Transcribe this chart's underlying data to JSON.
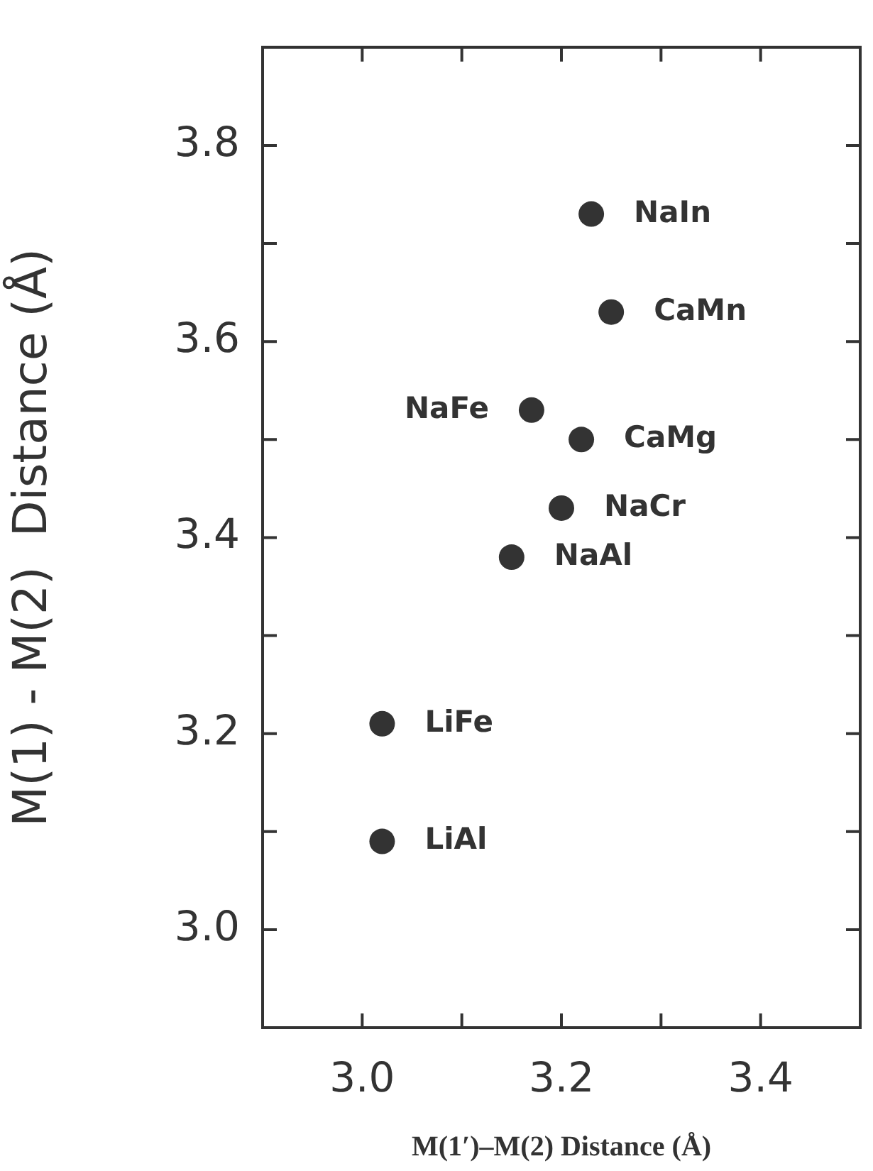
{
  "chart_data": {
    "type": "scatter",
    "xlabel": "M(1′)–M(2) Distance (Å)",
    "ylabel": "M(1) - M(2)  Distance (Å)",
    "x": [
      3.23,
      3.25,
      3.17,
      3.22,
      3.2,
      3.15,
      3.02,
      3.02
    ],
    "values": [
      3.73,
      3.63,
      3.53,
      3.5,
      3.43,
      3.38,
      3.21,
      3.09
    ],
    "color": "#333333",
    "marker": "circle",
    "grid": false,
    "xlim": [
      2.9,
      3.5
    ],
    "ylim": [
      2.9,
      3.9
    ],
    "xticks": [
      {
        "value": 3.0,
        "label": "3.0"
      },
      {
        "value": 3.1,
        "label": null
      },
      {
        "value": 3.2,
        "label": "3.2"
      },
      {
        "value": 3.3,
        "label": null
      },
      {
        "value": 3.4,
        "label": "3.4"
      }
    ],
    "yticks": [
      {
        "value": 3.0,
        "label": "3.0"
      },
      {
        "value": 3.1,
        "label": null
      },
      {
        "value": 3.2,
        "label": "3.2"
      },
      {
        "value": 3.3,
        "label": null
      },
      {
        "value": 3.4,
        "label": "3.4"
      },
      {
        "value": 3.5,
        "label": null
      },
      {
        "value": 3.6,
        "label": "3.6"
      },
      {
        "value": 3.7,
        "label": null
      },
      {
        "value": 3.8,
        "label": "3.8"
      }
    ],
    "annotations": [
      {
        "text": "NaIn",
        "x": 3.23,
        "y": 3.73
      },
      {
        "text": "CaMn",
        "x": 3.25,
        "y": 3.63
      },
      {
        "text": "NaFe",
        "x": 3.17,
        "y": 3.53
      },
      {
        "text": "CaMg",
        "x": 3.22,
        "y": 3.5
      },
      {
        "text": "NaCr",
        "x": 3.2,
        "y": 3.43
      },
      {
        "text": "NaAl",
        "x": 3.15,
        "y": 3.38
      },
      {
        "text": "LiFe",
        "x": 3.02,
        "y": 3.21
      },
      {
        "text": "LiAl",
        "x": 3.02,
        "y": 3.09
      }
    ]
  }
}
